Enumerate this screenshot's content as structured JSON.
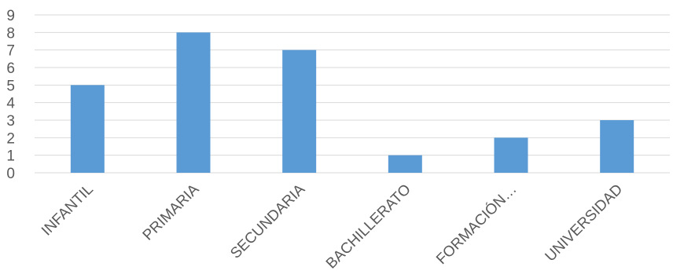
{
  "chart_data": {
    "type": "bar",
    "categories": [
      "INFANTIL",
      "PRIMARIA",
      "SECUNDARIA",
      "BACHILLERATO",
      "FORMACIÓN…",
      "UNIVERSIDAD"
    ],
    "values": [
      5,
      8,
      7,
      1,
      2,
      3
    ],
    "ylim": [
      0,
      9
    ],
    "yticks": [
      "0",
      "1",
      "2",
      "3",
      "4",
      "5",
      "6",
      "7",
      "8",
      "9"
    ],
    "grid": true,
    "bar_color": "#5B9BD5",
    "grid_color": "#D9D9D9",
    "text_color": "#595959"
  }
}
